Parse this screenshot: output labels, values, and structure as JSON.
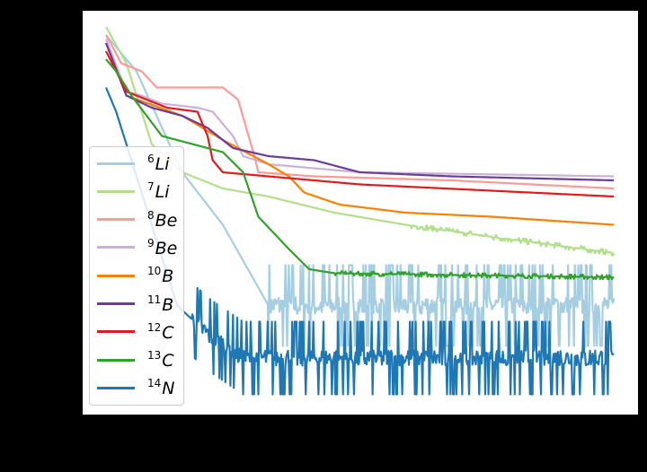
{
  "chart_data": {
    "type": "line",
    "title": "",
    "xlabel": "",
    "ylabel": "",
    "xlim": [
      0,
      100
    ],
    "ylim": [
      0,
      100
    ],
    "grid": false,
    "legend_placement": "center-left",
    "series": [
      {
        "name": "6Li",
        "mass": "6",
        "element": "Li",
        "color": "#a6cee3",
        "points": [
          [
            0,
            94
          ],
          [
            6,
            85
          ],
          [
            15,
            60
          ],
          [
            23,
            47
          ],
          [
            32,
            27
          ],
          [
            40,
            27
          ],
          [
            60,
            27
          ],
          [
            80,
            27
          ],
          [
            100,
            27
          ]
        ],
        "noise_after": 32,
        "noise_amp": 10
      },
      {
        "name": "7Li",
        "mass": "7",
        "element": "Li",
        "color": "#b2df8a",
        "points": [
          [
            0,
            96
          ],
          [
            4,
            87
          ],
          [
            9,
            67
          ],
          [
            15,
            60
          ],
          [
            23,
            56
          ],
          [
            32,
            54
          ],
          [
            45,
            50
          ],
          [
            59,
            47
          ],
          [
            76,
            44
          ],
          [
            100,
            40
          ]
        ],
        "noise_after": 60,
        "noise_amp": 0.6
      },
      {
        "name": "8Be",
        "mass": "8",
        "element": "Be",
        "color": "#fb9a99",
        "points": [
          [
            0,
            94
          ],
          [
            3,
            87
          ],
          [
            7,
            85
          ],
          [
            10,
            81
          ],
          [
            23,
            81
          ],
          [
            26,
            78
          ],
          [
            29,
            65
          ],
          [
            30,
            60
          ],
          [
            41,
            59
          ],
          [
            68,
            58
          ],
          [
            100,
            56
          ]
        ]
      },
      {
        "name": "9Be",
        "mass": "9",
        "element": "Be",
        "color": "#cab2d6",
        "points": [
          [
            0,
            93
          ],
          [
            4,
            80
          ],
          [
            7,
            79
          ],
          [
            11,
            77
          ],
          [
            18,
            76
          ],
          [
            21,
            75
          ],
          [
            25,
            69
          ],
          [
            27,
            64
          ],
          [
            32,
            62
          ],
          [
            50,
            60
          ],
          [
            100,
            59
          ]
        ]
      },
      {
        "name": "10B",
        "mass": "10",
        "element": "B",
        "color": "#ff7f00",
        "points": [
          [
            0,
            92
          ],
          [
            4,
            79
          ],
          [
            15,
            74
          ],
          [
            23,
            68
          ],
          [
            32,
            62
          ],
          [
            36,
            59
          ],
          [
            39,
            55
          ],
          [
            46,
            52
          ],
          [
            59,
            50
          ],
          [
            76,
            49
          ],
          [
            100,
            47
          ]
        ]
      },
      {
        "name": "11B",
        "mass": "11",
        "element": "B",
        "color": "#6a3d9a",
        "points": [
          [
            0,
            92
          ],
          [
            4,
            79
          ],
          [
            9,
            76
          ],
          [
            15,
            74
          ],
          [
            20,
            71
          ],
          [
            25,
            66
          ],
          [
            32,
            64
          ],
          [
            41,
            63
          ],
          [
            50,
            60
          ],
          [
            68,
            59
          ],
          [
            100,
            58
          ]
        ]
      },
      {
        "name": "12C",
        "mass": "12",
        "element": "C",
        "color": "#e31a1c",
        "points": [
          [
            0,
            90
          ],
          [
            4,
            80
          ],
          [
            12,
            76
          ],
          [
            18,
            75
          ],
          [
            20,
            69
          ],
          [
            21,
            63
          ],
          [
            23,
            60
          ],
          [
            32,
            59
          ],
          [
            50,
            57
          ],
          [
            100,
            54
          ]
        ]
      },
      {
        "name": "13C",
        "mass": "13",
        "element": "C",
        "color": "#33a02c",
        "points": [
          [
            0,
            88
          ],
          [
            2,
            85
          ],
          [
            5,
            79
          ],
          [
            11,
            69
          ],
          [
            23,
            65
          ],
          [
            27,
            60
          ],
          [
            30,
            49
          ],
          [
            36,
            41
          ],
          [
            40,
            36
          ],
          [
            45,
            35
          ],
          [
            100,
            34
          ]
        ],
        "noise_after": 45,
        "noise_amp": 0.5
      },
      {
        "name": "14N",
        "mass": "14",
        "element": "N",
        "color": "#1f78b4",
        "points": [
          [
            0,
            81
          ],
          [
            2,
            75
          ],
          [
            14,
            27
          ],
          [
            20,
            20
          ],
          [
            27,
            14
          ],
          [
            100,
            14
          ]
        ],
        "noise_after": 17,
        "noise_amp": 9
      }
    ]
  }
}
